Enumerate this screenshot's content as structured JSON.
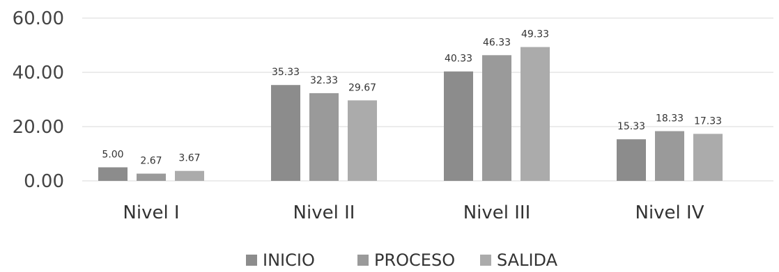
{
  "chart_data": {
    "type": "bar",
    "categories": [
      "Nivel I",
      "Nivel II",
      "Nivel III",
      "Nivel IV"
    ],
    "series": [
      {
        "name": "INICIO",
        "values": [
          5.0,
          35.33,
          40.33,
          15.33
        ],
        "labels": [
          "5.00",
          "35.33",
          "40.33",
          "15.33"
        ],
        "color": "#8c8c8c"
      },
      {
        "name": "PROCESO",
        "values": [
          2.67,
          32.33,
          46.33,
          18.33
        ],
        "labels": [
          "2.67",
          "32.33",
          "46.33",
          "18.33"
        ],
        "color": "#9a9a9a"
      },
      {
        "name": "SALIDA",
        "values": [
          3.67,
          29.67,
          49.33,
          17.33
        ],
        "labels": [
          "3.67",
          "29.67",
          "49.33",
          "17.33"
        ],
        "color": "#ababab"
      }
    ],
    "y_ticks": [
      "0.00",
      "20.00",
      "40.00",
      "60.00"
    ],
    "ylim": [
      0,
      60
    ],
    "grid": true,
    "legend_position": "bottom",
    "title": "",
    "xlabel": "",
    "ylabel": ""
  }
}
